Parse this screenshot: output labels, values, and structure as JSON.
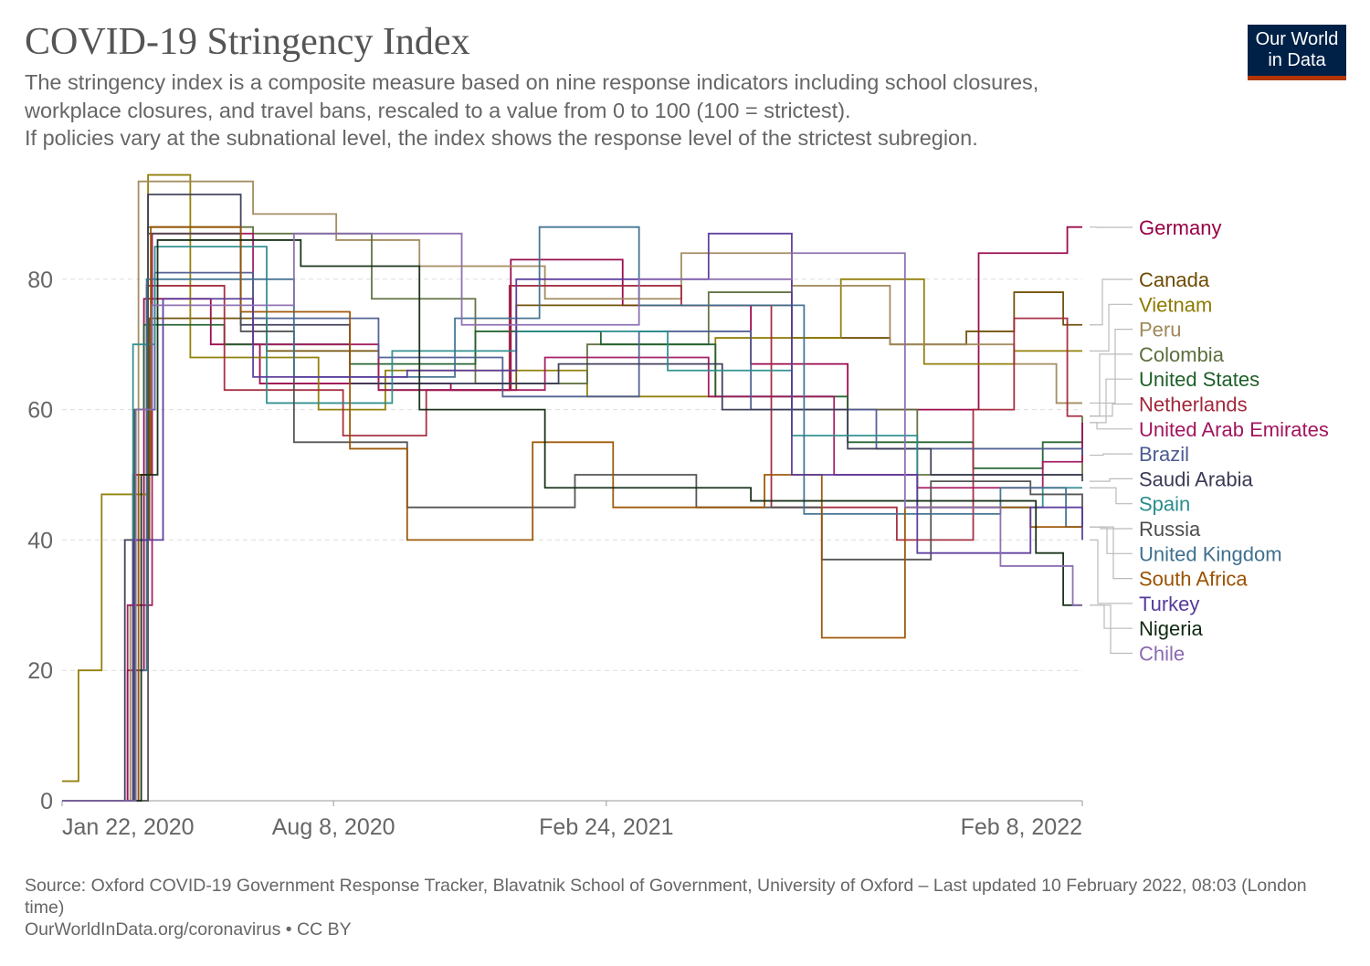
{
  "header": {
    "title": "COVID-19 Stringency Index",
    "subtitle": "The stringency index is a composite measure based on nine response indicators including school closures,\nworkplace closures, and travel bans, rescaled to a value from 0 to 100 (100 = strictest).\n If policies vary at the subnational level, the index shows the response level of the strictest subregion.",
    "logo": "Our World in Data"
  },
  "footer": {
    "source": "Source: Oxford COVID-19 Government Response Tracker, Blavatnik School of Government, University of Oxford – Last updated 10 February 2022, 08:03 (London time)",
    "link": "OurWorldInData.org/coronavirus • CC BY"
  },
  "chart_data": {
    "type": "line",
    "title": "COVID-19 Stringency Index",
    "xlabel": "",
    "ylabel": "",
    "xlim": [
      "2020-01-22",
      "2022-02-08"
    ],
    "ylim": [
      0,
      100
    ],
    "x_ticks": [
      "Jan 22, 2020",
      "Aug 8, 2020",
      "Feb 24, 2021",
      "Feb 8, 2022"
    ],
    "x_tick_dates": [
      "2020-01-22",
      "2020-08-08",
      "2021-02-24",
      "2022-02-08"
    ],
    "y_ticks": [
      0,
      20,
      40,
      60,
      80
    ],
    "grid": "horizontal dashed",
    "legend": "right, labels at line ends",
    "step": true,
    "series": [
      {
        "name": "Germany",
        "color": "#970046",
        "points": [
          [
            "2020-01-22",
            0
          ],
          [
            "2020-03-10",
            20
          ],
          [
            "2020-03-22",
            77
          ],
          [
            "2020-05-10",
            70
          ],
          [
            "2020-06-15",
            64
          ],
          [
            "2020-11-02",
            63
          ],
          [
            "2020-12-16",
            83
          ],
          [
            "2021-03-08",
            76
          ],
          [
            "2021-06-10",
            67
          ],
          [
            "2021-08-20",
            60
          ],
          [
            "2021-11-24",
            84
          ],
          [
            "2022-01-28",
            88
          ],
          [
            "2022-02-08",
            88
          ]
        ]
      },
      {
        "name": "Canada",
        "color": "#6d4b00",
        "points": [
          [
            "2020-01-22",
            0
          ],
          [
            "2020-03-14",
            40
          ],
          [
            "2020-03-26",
            74
          ],
          [
            "2020-06-20",
            69
          ],
          [
            "2020-09-10",
            63
          ],
          [
            "2020-12-20",
            76
          ],
          [
            "2021-04-10",
            76
          ],
          [
            "2021-07-10",
            71
          ],
          [
            "2021-09-20",
            70
          ],
          [
            "2021-11-15",
            72
          ],
          [
            "2021-12-20",
            78
          ],
          [
            "2022-01-25",
            73
          ],
          [
            "2022-02-08",
            73
          ]
        ]
      },
      {
        "name": "Vietnam",
        "color": "#8d7a00",
        "points": [
          [
            "2020-01-22",
            3
          ],
          [
            "2020-02-03",
            20
          ],
          [
            "2020-02-20",
            47
          ],
          [
            "2020-03-25",
            96
          ],
          [
            "2020-04-25",
            68
          ],
          [
            "2020-07-28",
            60
          ],
          [
            "2020-09-15",
            66
          ],
          [
            "2021-02-10",
            62
          ],
          [
            "2021-05-15",
            71
          ],
          [
            "2021-08-15",
            80
          ],
          [
            "2021-10-15",
            67
          ],
          [
            "2021-12-20",
            69
          ],
          [
            "2022-02-08",
            69
          ]
        ]
      },
      {
        "name": "Peru",
        "color": "#a0885a",
        "points": [
          [
            "2020-01-22",
            0
          ],
          [
            "2020-03-12",
            30
          ],
          [
            "2020-03-18",
            95
          ],
          [
            "2020-06-10",
            90
          ],
          [
            "2020-08-10",
            86
          ],
          [
            "2020-10-10",
            82
          ],
          [
            "2021-01-10",
            77
          ],
          [
            "2021-04-20",
            84
          ],
          [
            "2021-07-10",
            79
          ],
          [
            "2021-09-20",
            70
          ],
          [
            "2021-12-20",
            67
          ],
          [
            "2022-01-20",
            61
          ],
          [
            "2022-02-08",
            61
          ]
        ]
      },
      {
        "name": "Colombia",
        "color": "#5c6e3c",
        "points": [
          [
            "2020-01-22",
            0
          ],
          [
            "2020-03-15",
            50
          ],
          [
            "2020-03-25",
            88
          ],
          [
            "2020-06-10",
            87
          ],
          [
            "2020-09-05",
            77
          ],
          [
            "2020-11-20",
            64
          ],
          [
            "2021-02-10",
            70
          ],
          [
            "2021-05-10",
            78
          ],
          [
            "2021-07-10",
            60
          ],
          [
            "2021-10-10",
            50
          ],
          [
            "2022-01-01",
            50
          ],
          [
            "2022-02-08",
            59
          ]
        ]
      },
      {
        "name": "United States",
        "color": "#1f5f2a",
        "points": [
          [
            "2020-01-22",
            0
          ],
          [
            "2020-03-15",
            60
          ],
          [
            "2020-03-22",
            73
          ],
          [
            "2020-05-20",
            70
          ],
          [
            "2020-08-20",
            67
          ],
          [
            "2020-11-20",
            72
          ],
          [
            "2021-02-20",
            70
          ],
          [
            "2021-05-15",
            62
          ],
          [
            "2021-08-20",
            55
          ],
          [
            "2021-11-20",
            51
          ],
          [
            "2022-01-10",
            55
          ],
          [
            "2022-02-08",
            58
          ]
        ]
      },
      {
        "name": "Netherlands",
        "color": "#a2273a",
        "points": [
          [
            "2020-01-22",
            0
          ],
          [
            "2020-03-14",
            50
          ],
          [
            "2020-03-24",
            79
          ],
          [
            "2020-05-20",
            63
          ],
          [
            "2020-08-15",
            56
          ],
          [
            "2020-10-15",
            63
          ],
          [
            "2020-12-15",
            79
          ],
          [
            "2021-04-20",
            76
          ],
          [
            "2021-06-25",
            45
          ],
          [
            "2021-09-25",
            40
          ],
          [
            "2021-11-20",
            60
          ],
          [
            "2021-12-20",
            74
          ],
          [
            "2022-01-28",
            59
          ],
          [
            "2022-02-08",
            59
          ]
        ]
      },
      {
        "name": "United Arab Emirates",
        "color": "#a2155e",
        "points": [
          [
            "2020-01-22",
            0
          ],
          [
            "2020-03-10",
            30
          ],
          [
            "2020-03-28",
            87
          ],
          [
            "2020-06-10",
            70
          ],
          [
            "2020-09-10",
            63
          ],
          [
            "2021-01-10",
            68
          ],
          [
            "2021-05-10",
            62
          ],
          [
            "2021-08-10",
            50
          ],
          [
            "2021-10-10",
            48
          ],
          [
            "2022-01-10",
            52
          ],
          [
            "2022-02-08",
            58
          ]
        ]
      },
      {
        "name": "Brazil",
        "color": "#4c5c90",
        "points": [
          [
            "2020-01-22",
            0
          ],
          [
            "2020-03-16",
            60
          ],
          [
            "2020-03-30",
            81
          ],
          [
            "2020-06-10",
            74
          ],
          [
            "2020-09-10",
            68
          ],
          [
            "2020-12-10",
            62
          ],
          [
            "2021-03-20",
            72
          ],
          [
            "2021-06-10",
            60
          ],
          [
            "2021-09-10",
            54
          ],
          [
            "2022-02-08",
            53
          ]
        ]
      },
      {
        "name": "Saudi Arabia",
        "color": "#3a3a55",
        "points": [
          [
            "2020-01-22",
            0
          ],
          [
            "2020-03-08",
            40
          ],
          [
            "2020-03-25",
            93
          ],
          [
            "2020-06-01",
            73
          ],
          [
            "2020-08-20",
            64
          ],
          [
            "2021-01-20",
            67
          ],
          [
            "2021-05-20",
            60
          ],
          [
            "2021-08-20",
            54
          ],
          [
            "2021-10-20",
            50
          ],
          [
            "2022-02-08",
            49
          ]
        ]
      },
      {
        "name": "Spain",
        "color": "#2a8c8c",
        "points": [
          [
            "2020-01-22",
            0
          ],
          [
            "2020-03-14",
            70
          ],
          [
            "2020-03-30",
            85
          ],
          [
            "2020-06-20",
            61
          ],
          [
            "2020-09-20",
            69
          ],
          [
            "2020-12-20",
            72
          ],
          [
            "2021-04-10",
            66
          ],
          [
            "2021-07-10",
            56
          ],
          [
            "2021-10-10",
            45
          ],
          [
            "2022-01-10",
            48
          ],
          [
            "2022-02-08",
            48
          ]
        ]
      },
      {
        "name": "Russia",
        "color": "#4d4d4d",
        "points": [
          [
            "2020-01-22",
            0
          ],
          [
            "2020-03-25",
            87
          ],
          [
            "2020-06-01",
            72
          ],
          [
            "2020-07-10",
            55
          ],
          [
            "2020-10-01",
            45
          ],
          [
            "2021-02-01",
            50
          ],
          [
            "2021-05-01",
            45
          ],
          [
            "2021-08-01",
            37
          ],
          [
            "2021-10-20",
            49
          ],
          [
            "2022-01-01",
            47
          ],
          [
            "2022-02-08",
            42
          ]
        ]
      },
      {
        "name": "United Kingdom",
        "color": "#3f6f8f",
        "points": [
          [
            "2020-01-22",
            0
          ],
          [
            "2020-03-18",
            20
          ],
          [
            "2020-03-24",
            80
          ],
          [
            "2020-07-10",
            65
          ],
          [
            "2020-11-05",
            74
          ],
          [
            "2021-01-06",
            88
          ],
          [
            "2021-03-20",
            76
          ],
          [
            "2021-07-19",
            44
          ],
          [
            "2021-12-10",
            48
          ],
          [
            "2022-01-27",
            42
          ],
          [
            "2022-02-08",
            42
          ]
        ]
      },
      {
        "name": "South Africa",
        "color": "#9a5200",
        "points": [
          [
            "2020-01-22",
            0
          ],
          [
            "2020-03-18",
            50
          ],
          [
            "2020-03-27",
            88
          ],
          [
            "2020-06-01",
            75
          ],
          [
            "2020-08-20",
            54
          ],
          [
            "2020-10-01",
            40
          ],
          [
            "2021-01-01",
            55
          ],
          [
            "2021-03-01",
            45
          ],
          [
            "2021-06-20",
            50
          ],
          [
            "2021-08-01",
            25
          ],
          [
            "2021-10-01",
            45
          ],
          [
            "2022-01-01",
            42
          ],
          [
            "2022-02-08",
            42
          ]
        ]
      },
      {
        "name": "Turkey",
        "color": "#58399b",
        "points": [
          [
            "2020-01-22",
            0
          ],
          [
            "2020-03-14",
            40
          ],
          [
            "2020-04-05",
            77
          ],
          [
            "2020-06-10",
            65
          ],
          [
            "2020-10-01",
            66
          ],
          [
            "2020-12-20",
            80
          ],
          [
            "2021-05-10",
            87
          ],
          [
            "2021-07-10",
            50
          ],
          [
            "2021-10-10",
            38
          ],
          [
            "2022-01-01",
            45
          ],
          [
            "2022-02-08",
            40
          ]
        ]
      },
      {
        "name": "Nigeria",
        "color": "#112a12",
        "points": [
          [
            "2020-01-22",
            0
          ],
          [
            "2020-03-20",
            50
          ],
          [
            "2020-04-01",
            86
          ],
          [
            "2020-07-15",
            82
          ],
          [
            "2020-10-10",
            60
          ],
          [
            "2021-01-10",
            48
          ],
          [
            "2021-06-10",
            46
          ],
          [
            "2021-10-10",
            46
          ],
          [
            "2022-01-05",
            38
          ],
          [
            "2022-01-25",
            30
          ],
          [
            "2022-02-08",
            30
          ]
        ]
      },
      {
        "name": "Chile",
        "color": "#8a6bb0",
        "points": [
          [
            "2020-01-22",
            0
          ],
          [
            "2020-03-16",
            60
          ],
          [
            "2020-03-28",
            76
          ],
          [
            "2020-07-10",
            87
          ],
          [
            "2020-11-10",
            73
          ],
          [
            "2021-03-20",
            80
          ],
          [
            "2021-07-10",
            84
          ],
          [
            "2021-10-01",
            45
          ],
          [
            "2021-12-10",
            36
          ],
          [
            "2022-01-20",
            36
          ],
          [
            "2022-02-01",
            30
          ],
          [
            "2022-02-08",
            30
          ]
        ]
      }
    ]
  }
}
